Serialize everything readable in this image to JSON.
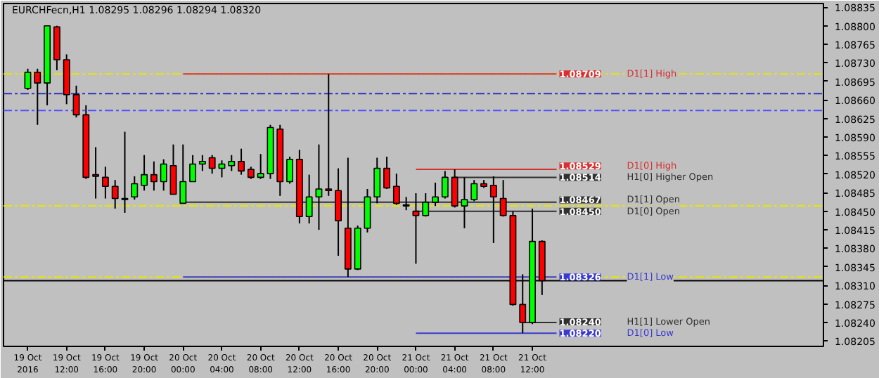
{
  "chart_data": {
    "type": "candlestick",
    "title": "EURCHFecn,H1  1.08295 1.08296 1.08294 1.08320",
    "x": [
      "2016-10-19T08:00",
      "2016-10-19T09:00",
      "2016-10-19T10:00",
      "2016-10-19T11:00",
      "2016-10-19T12:00",
      "2016-10-19T13:00",
      "2016-10-19T14:00",
      "2016-10-19T15:00",
      "2016-10-19T16:00",
      "2016-10-19T17:00",
      "2016-10-19T18:00",
      "2016-10-19T19:00",
      "2016-10-19T20:00",
      "2016-10-19T21:00",
      "2016-10-19T22:00",
      "2016-10-19T23:00",
      "2016-10-20T00:00",
      "2016-10-20T01:00",
      "2016-10-20T02:00",
      "2016-10-20T03:00",
      "2016-10-20T04:00",
      "2016-10-20T05:00",
      "2016-10-20T06:00",
      "2016-10-20T07:00",
      "2016-10-20T08:00",
      "2016-10-20T09:00",
      "2016-10-20T10:00",
      "2016-10-20T11:00",
      "2016-10-20T12:00",
      "2016-10-20T13:00",
      "2016-10-20T14:00",
      "2016-10-20T15:00",
      "2016-10-20T16:00",
      "2016-10-20T17:00",
      "2016-10-20T18:00",
      "2016-10-20T19:00",
      "2016-10-20T20:00",
      "2016-10-20T21:00",
      "2016-10-20T22:00",
      "2016-10-20T23:00",
      "2016-10-21T00:00",
      "2016-10-21T01:00",
      "2016-10-21T02:00",
      "2016-10-21T03:00",
      "2016-10-21T04:00",
      "2016-10-21T05:00",
      "2016-10-21T06:00",
      "2016-10-21T07:00",
      "2016-10-21T08:00",
      "2016-10-21T09:00",
      "2016-10-21T10:00",
      "2016-10-21T11:00",
      "2016-10-21T12:00",
      "2016-10-21T13:00"
    ],
    "ohlc": [
      [
        1.08682,
        1.08719,
        1.08679,
        1.08712
      ],
      [
        1.08712,
        1.08719,
        1.08613,
        1.08692
      ],
      [
        1.08692,
        1.088,
        1.0865,
        1.088
      ],
      [
        1.08798,
        1.088,
        1.08716,
        1.08736
      ],
      [
        1.08736,
        1.08746,
        1.08652,
        1.0867
      ],
      [
        1.0867,
        1.08687,
        1.08627,
        1.08632
      ],
      [
        1.08632,
        1.0865,
        1.08511,
        1.08514
      ],
      [
        1.08519,
        1.08571,
        1.08474,
        1.08516
      ],
      [
        1.08514,
        1.08534,
        1.08474,
        1.08497
      ],
      [
        1.08497,
        1.08509,
        1.08455,
        1.08474
      ],
      [
        1.08474,
        1.086,
        1.08447,
        1.08472
      ],
      [
        1.08477,
        1.08516,
        1.08472,
        1.08502
      ],
      [
        1.08499,
        1.08556,
        1.08489,
        1.08519
      ],
      [
        1.08519,
        1.08544,
        1.08489,
        1.08506
      ],
      [
        1.08506,
        1.08548,
        1.08489,
        1.08539
      ],
      [
        1.08536,
        1.08576,
        1.08482,
        1.08482
      ],
      [
        1.08465,
        1.08576,
        1.08465,
        1.08506
      ],
      [
        1.08506,
        1.08556,
        1.08506,
        1.08539
      ],
      [
        1.08539,
        1.08556,
        1.08526,
        1.08544
      ],
      [
        1.08551,
        1.08556,
        1.08521,
        1.08531
      ],
      [
        1.08531,
        1.08546,
        1.08514,
        1.08539
      ],
      [
        1.08536,
        1.08556,
        1.08526,
        1.08544
      ],
      [
        1.08544,
        1.08568,
        1.08519,
        1.08526
      ],
      [
        1.08529,
        1.08534,
        1.08511,
        1.08514
      ],
      [
        1.08514,
        1.08558,
        1.08511,
        1.08521
      ],
      [
        1.08521,
        1.08613,
        1.08511,
        1.08608
      ],
      [
        1.08605,
        1.08613,
        1.08479,
        1.08506
      ],
      [
        1.08506,
        1.08553,
        1.08502,
        1.08548
      ],
      [
        1.08548,
        1.08566,
        1.08427,
        1.0844
      ],
      [
        1.0844,
        1.08519,
        1.08427,
        1.08477
      ],
      [
        1.08477,
        1.08576,
        1.08415,
        1.08492
      ],
      [
        1.08492,
        1.08709,
        1.08479,
        1.08489
      ],
      [
        1.08489,
        1.08531,
        1.08366,
        1.08432
      ],
      [
        1.08418,
        1.08551,
        1.08326,
        1.08341
      ],
      [
        1.08341,
        1.08423,
        1.08339,
        1.08418
      ],
      [
        1.08418,
        1.08492,
        1.0841,
        1.08477
      ],
      [
        1.08477,
        1.08551,
        1.08465,
        1.08531
      ],
      [
        1.08531,
        1.08553,
        1.08492,
        1.08494
      ],
      [
        1.08497,
        1.08521,
        1.08462,
        1.08465
      ],
      [
        1.08462,
        1.08477,
        1.08452,
        1.0846
      ],
      [
        1.0845,
        1.08484,
        1.08351,
        1.08442
      ],
      [
        1.08442,
        1.08484,
        1.0844,
        1.08467
      ],
      [
        1.08467,
        1.08504,
        1.0846,
        1.08477
      ],
      [
        1.08477,
        1.08526,
        1.08474,
        1.08514
      ],
      [
        1.08514,
        1.08529,
        1.08457,
        1.0846
      ],
      [
        1.0846,
        1.08514,
        1.08418,
        1.08472
      ],
      [
        1.08472,
        1.08509,
        1.08469,
        1.08502
      ],
      [
        1.08502,
        1.08509,
        1.08494,
        1.08497
      ],
      [
        1.08499,
        1.08516,
        1.0839,
        1.08477
      ],
      [
        1.08474,
        1.08509,
        1.0844,
        1.08442
      ],
      [
        1.08442,
        1.0845,
        1.08272,
        1.08274
      ],
      [
        1.08274,
        1.08331,
        1.0822,
        1.0824
      ],
      [
        1.0824,
        1.08455,
        1.08237,
        1.08393
      ],
      [
        1.08393,
        1.08395,
        1.08292,
        1.08319
      ]
    ],
    "colors": [
      "#00ff00",
      "#ff0000",
      "#00ff00",
      "#ff0000",
      "#ff0000",
      "#ff0000",
      "#ff0000",
      "#ff0000",
      "#ff0000",
      "#ff0000",
      "#ff0000",
      "#00ff00",
      "#00ff00",
      "#ff0000",
      "#00ff00",
      "#ff0000",
      "#00ff00",
      "#00ff00",
      "#00ff00",
      "#ff0000",
      "#00ff00",
      "#00ff00",
      "#ff0000",
      "#ff0000",
      "#00ff00",
      "#00ff00",
      "#ff0000",
      "#00ff00",
      "#ff0000",
      "#00ff00",
      "#00ff00",
      "#ff0000",
      "#ff0000",
      "#ff0000",
      "#00ff00",
      "#00ff00",
      "#00ff00",
      "#ff0000",
      "#ff0000",
      "#ff0000",
      "#ff0000",
      "#00ff00",
      "#00ff00",
      "#00ff00",
      "#ff0000",
      "#00ff00",
      "#00ff00",
      "#ff0000",
      "#ff0000",
      "#ff0000",
      "#ff0000",
      "#ff0000",
      "#00ff00",
      "#ff0000"
    ],
    "series": [
      {
        "type": "line",
        "name": "D1[1] High",
        "color": "#d83030",
        "x": [
          "2016-10-20T00:00",
          "2016-10-21T14:30"
        ],
        "values": [
          1.08709,
          1.08709
        ],
        "value_labels": [
          null,
          "1.08709"
        ]
      },
      {
        "type": "line",
        "name": "D1[0] High",
        "color": "#d83030",
        "x": [
          "2016-10-21T00:00",
          "2016-10-21T14:30"
        ],
        "values": [
          1.08529,
          1.08529
        ],
        "value_labels": [
          null,
          "1.08529"
        ]
      },
      {
        "type": "line",
        "name": "H1[0] Higher Open",
        "color": "#303030",
        "x": [
          "2016-10-21T04:00",
          "2016-10-21T14:30"
        ],
        "values": [
          1.08514,
          1.08514
        ],
        "value_labels": [
          null,
          "1.08514"
        ]
      },
      {
        "type": "line",
        "name": "D1[1] Open",
        "color": "#303030",
        "x": [
          "2016-10-20T00:00",
          "2016-10-21T14:30"
        ],
        "values": [
          1.08467,
          1.08467
        ],
        "value_labels": [
          null,
          "1.08467"
        ]
      },
      {
        "type": "line",
        "name": "D1[0] Open",
        "color": "#303030",
        "x": [
          "2016-10-21T00:00",
          "2016-10-21T14:30"
        ],
        "values": [
          1.0845,
          1.0845
        ],
        "value_labels": [
          null,
          "1.08450"
        ]
      },
      {
        "type": "line",
        "name": "D1[1] Low",
        "color": "#3a3ad0",
        "x": [
          "2016-10-20T00:00",
          "2016-10-21T14:30"
        ],
        "values": [
          1.08326,
          1.08326
        ],
        "value_labels": [
          null,
          "1.08326"
        ]
      },
      {
        "type": "line",
        "name": "H1[1] Lower Open",
        "color": "#303030",
        "x": [
          "2016-10-21T11:00",
          "2016-10-21T14:30"
        ],
        "values": [
          1.0824,
          1.0824
        ],
        "value_labels": [
          null,
          "1.08240"
        ]
      },
      {
        "type": "line",
        "name": "D1[0] Low",
        "color": "#3a3ad0",
        "x": [
          "2016-10-21T00:00",
          "2016-10-21T14:30"
        ],
        "values": [
          1.0822,
          1.0822
        ],
        "value_labels": [
          null,
          "1.08220"
        ]
      }
    ],
    "ref_lines": [
      {
        "axis": "y",
        "value": 1.08709,
        "color": "#e6e600",
        "line_style": "dashed"
      },
      {
        "axis": "y",
        "value": 1.08672,
        "color": "#3030c0",
        "line_style": "dashed"
      },
      {
        "axis": "y",
        "value": 1.0864,
        "color": "#5050ff",
        "line_style": "dashed"
      },
      {
        "axis": "y",
        "value": 1.0846,
        "color": "#e6e600",
        "line_style": "dashed"
      },
      {
        "axis": "y",
        "value": 1.08326,
        "color": "#e6e600",
        "line_style": "dashed"
      },
      {
        "axis": "y",
        "value": 1.08319,
        "color": "#000000",
        "line_style": "solid"
      }
    ],
    "xlim": [
      "2016-10-19T05:30",
      "2016-10-22T18:00"
    ],
    "ylim": [
      1.08195,
      1.08842
    ],
    "xticks": [
      {
        "value": "2016-10-19T08:00",
        "label": "19 Oct 2016"
      },
      {
        "value": "2016-10-19T12:00",
        "label": "19 Oct 12:00"
      },
      {
        "value": "2016-10-19T16:00",
        "label": "19 Oct 16:00"
      },
      {
        "value": "2016-10-19T20:00",
        "label": "19 Oct 20:00"
      },
      {
        "value": "2016-10-20T00:00",
        "label": "20 Oct 00:00"
      },
      {
        "value": "2016-10-20T04:00",
        "label": "20 Oct 04:00"
      },
      {
        "value": "2016-10-20T08:00",
        "label": "20 Oct 08:00"
      },
      {
        "value": "2016-10-20T12:00",
        "label": "20 Oct 12:00"
      },
      {
        "value": "2016-10-20T16:00",
        "label": "20 Oct 16:00"
      },
      {
        "value": "2016-10-20T20:00",
        "label": "20 Oct 20:00"
      },
      {
        "value": "2016-10-21T00:00",
        "label": "21 Oct 00:00"
      },
      {
        "value": "2016-10-21T04:00",
        "label": "21 Oct 04:00"
      },
      {
        "value": "2016-10-21T08:00",
        "label": "21 Oct 08:00"
      },
      {
        "value": "2016-10-21T12:00",
        "label": "21 Oct 12:00"
      }
    ],
    "yticks": [
      {
        "value": 1.08835,
        "label": "1.08835"
      },
      {
        "value": 1.088,
        "label": "1.08800"
      },
      {
        "value": 1.08765,
        "label": "1.08765"
      },
      {
        "value": 1.0873,
        "label": "1.08730"
      },
      {
        "value": 1.08695,
        "label": "1.08695"
      },
      {
        "value": 1.0866,
        "label": "1.08660"
      },
      {
        "value": 1.08625,
        "label": "1.08625"
      },
      {
        "value": 1.0859,
        "label": "1.08590"
      },
      {
        "value": 1.08555,
        "label": "1.08555"
      },
      {
        "value": 1.0852,
        "label": "1.08520"
      },
      {
        "value": 1.08485,
        "label": "1.08485"
      },
      {
        "value": 1.0845,
        "label": "1.08450"
      },
      {
        "value": 1.08415,
        "label": "1.08415"
      },
      {
        "value": 1.0838,
        "label": "1.08380"
      },
      {
        "value": 1.08345,
        "label": "1.08345"
      },
      {
        "value": 1.0831,
        "label": "1.08310"
      },
      {
        "value": 1.08275,
        "label": "1.08275"
      },
      {
        "value": 1.0824,
        "label": "1.08240"
      },
      {
        "value": 1.08205,
        "label": "1.08205"
      }
    ],
    "grid": false
  }
}
